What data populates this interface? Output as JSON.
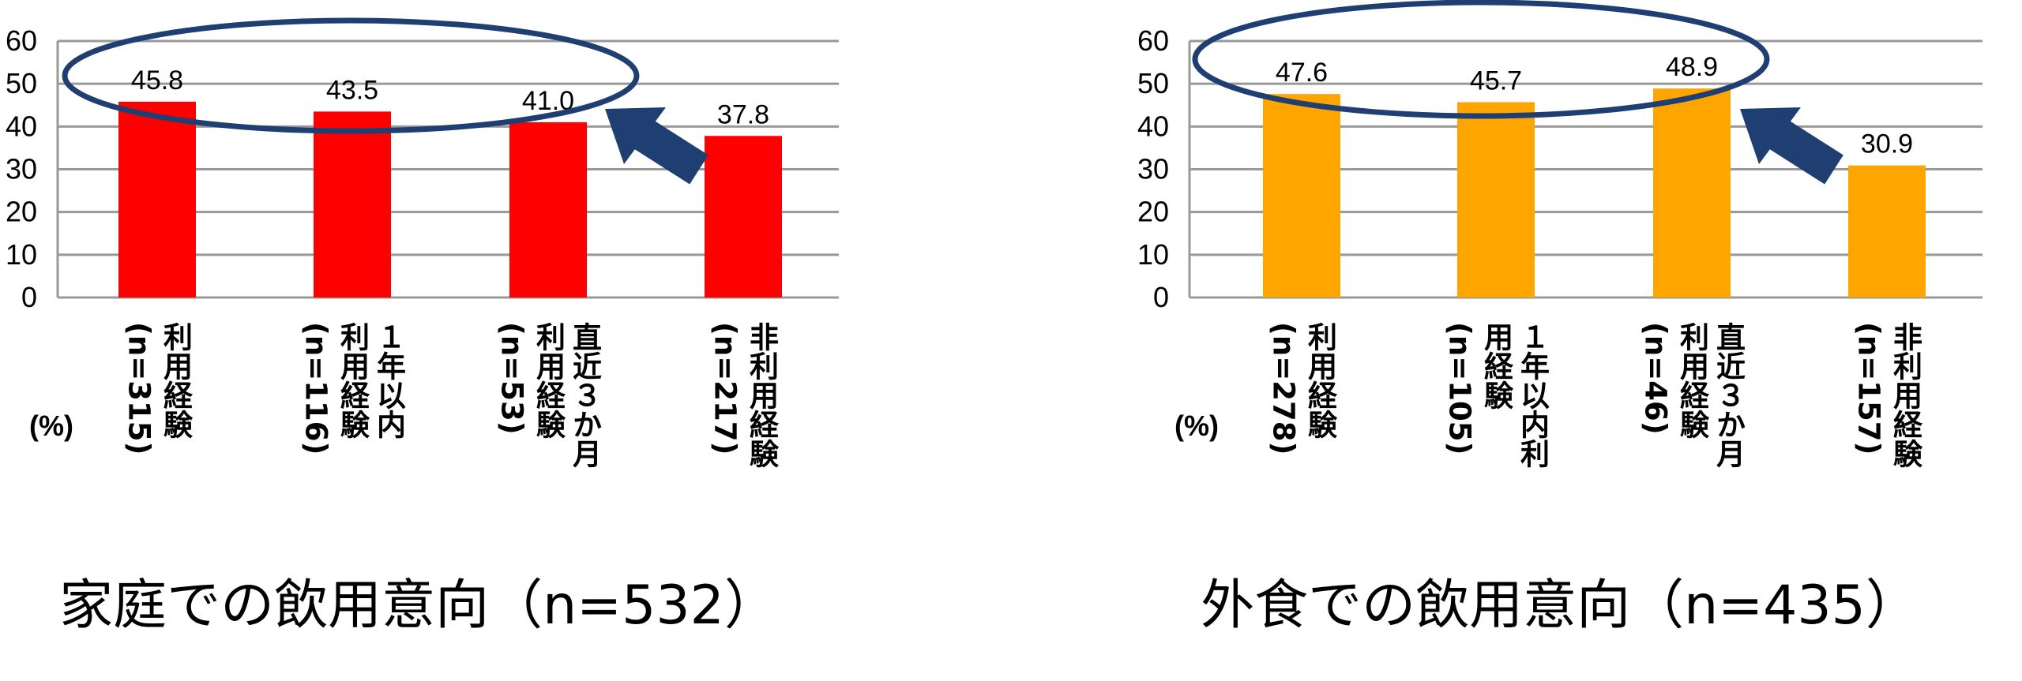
{
  "chart_data": [
    {
      "type": "bar",
      "title": "家庭での飲用意向（n=532）",
      "y_axis_label": "(%)",
      "categories": [
        [
          "利用経験",
          "(n=315)"
        ],
        [
          "１年以内",
          "利用経験",
          "(n=116)"
        ],
        [
          "直近３か月",
          "利用経験",
          "(n=53)"
        ],
        [
          "非利用経験",
          "(n=217)"
        ]
      ],
      "values": [
        45.8,
        43.5,
        41.0,
        37.8
      ],
      "value_labels": [
        "45.8",
        "43.5",
        "41.0",
        "37.8"
      ],
      "color": "#ff0000",
      "ylim": [
        0,
        60
      ],
      "yticks": [
        0,
        10,
        20,
        30,
        40,
        50,
        60
      ],
      "grid": true
    },
    {
      "type": "bar",
      "title": "外食での飲用意向（n=435）",
      "y_axis_label": "(%)",
      "categories": [
        [
          "利用経験",
          "(n=278)"
        ],
        [
          "１年以内利",
          "用経験",
          "(n=105)"
        ],
        [
          "直近３か月",
          "利用経験",
          "(n=46)"
        ],
        [
          "非利用経験",
          "(n=157)"
        ]
      ],
      "values": [
        47.6,
        45.7,
        48.9,
        30.9
      ],
      "value_labels": [
        "47.6",
        "45.7",
        "48.9",
        "30.9"
      ],
      "color": "#ffa500",
      "ylim": [
        0,
        60
      ],
      "yticks": [
        0,
        10,
        20,
        30,
        40,
        50,
        60
      ],
      "grid": true
    }
  ]
}
